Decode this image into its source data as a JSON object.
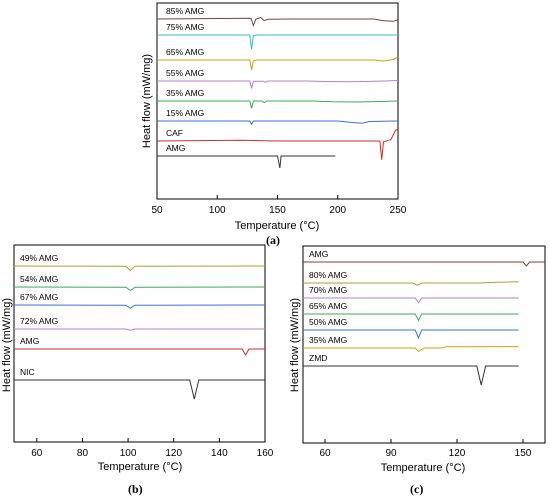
{
  "panel_labels": {
    "a": "(a)",
    "b": "(b)",
    "c": "(c)"
  },
  "chart_data": [
    {
      "id": "a",
      "type": "line",
      "xlabel": "Temperature (°C)",
      "ylabel": "Heat flow (mW/mg)",
      "xlim": [
        50,
        250
      ],
      "xticks": [
        "50",
        "100",
        "150",
        "200",
        "250"
      ],
      "grid": false,
      "series": [
        {
          "name": "85% AMG",
          "color": "#7b3f3f",
          "points": [
            [
              50,
              0
            ],
            [
              128,
              0.3
            ],
            [
              130,
              -2.5
            ],
            [
              132,
              -0.1
            ],
            [
              136,
              0.6
            ],
            [
              139,
              -0.6
            ],
            [
              142,
              -0.1
            ],
            [
              160,
              0
            ],
            [
              230,
              0
            ],
            [
              238,
              -0.7
            ],
            [
              246,
              -0.9
            ],
            [
              250,
              -0.3
            ]
          ]
        },
        {
          "name": "75% AMG",
          "color": "#2bbfbf",
          "points": [
            [
              50,
              0
            ],
            [
              127,
              0
            ],
            [
              128.5,
              -5.5
            ],
            [
              130,
              -0.2
            ],
            [
              133,
              0
            ],
            [
              250,
              0
            ]
          ]
        },
        {
          "name": "65% AMG",
          "color": "#d2a000",
          "points": [
            [
              50,
              0
            ],
            [
              127,
              0
            ],
            [
              128.5,
              -3.8
            ],
            [
              130,
              -0.3
            ],
            [
              133,
              0
            ],
            [
              230,
              0
            ],
            [
              238,
              -0.4
            ],
            [
              246,
              0.2
            ],
            [
              250,
              1.2
            ]
          ]
        },
        {
          "name": "55% AMG",
          "color": "#b37fd9",
          "points": [
            [
              50,
              0
            ],
            [
              127,
              0
            ],
            [
              128.5,
              -2.9
            ],
            [
              130,
              -0.1
            ],
            [
              138,
              -0.1
            ],
            [
              140,
              -0.5
            ],
            [
              142,
              0
            ],
            [
              175,
              0
            ],
            [
              190,
              -0.2
            ],
            [
              210,
              -0.3
            ],
            [
              230,
              -0.1
            ],
            [
              250,
              0.2
            ]
          ]
        },
        {
          "name": "35% AMG",
          "color": "#3aaa5a",
          "points": [
            [
              50,
              0
            ],
            [
              127,
              0
            ],
            [
              128.5,
              -2.8
            ],
            [
              130,
              0
            ],
            [
              137,
              0
            ],
            [
              139,
              -0.6
            ],
            [
              141,
              0
            ],
            [
              180,
              0
            ],
            [
              195,
              -0.3
            ],
            [
              215,
              -0.4
            ],
            [
              235,
              -0.2
            ],
            [
              250,
              0
            ]
          ]
        },
        {
          "name": "15% AMG",
          "color": "#3a6fd8",
          "points": [
            [
              50,
              0
            ],
            [
              127,
              0
            ],
            [
              128.5,
              -1.2
            ],
            [
              130,
              0
            ],
            [
              200,
              0
            ],
            [
              210,
              -0.5
            ],
            [
              220,
              -0.9
            ],
            [
              226,
              -0.2
            ],
            [
              250,
              0
            ]
          ]
        },
        {
          "name": "CAF",
          "color": "#d42a2a",
          "points": [
            [
              50,
              0
            ],
            [
              120,
              0.3
            ],
            [
              150,
              0
            ],
            [
              235,
              0
            ],
            [
              236.5,
              -7.2
            ],
            [
              238,
              -0.3
            ],
            [
              244,
              0.5
            ],
            [
              248,
              4.2
            ],
            [
              250,
              4.5
            ]
          ]
        },
        {
          "name": "AMG",
          "color": "#333333",
          "points": [
            [
              50,
              0
            ],
            [
              150,
              0
            ],
            [
              152,
              -4.6
            ],
            [
              153,
              0
            ],
            [
              198,
              0
            ]
          ]
        }
      ],
      "labels": [
        "85% AMG",
        "75% AMG",
        "65% AMG",
        "55% AMG",
        "35% AMG",
        "15% AMG",
        "CAF",
        "AMG"
      ]
    },
    {
      "id": "b",
      "type": "line",
      "xlabel": "Temperature (°C)",
      "ylabel": "Heat flow (mW/mg)",
      "xlim": [
        50,
        160
      ],
      "xticks": [
        "60",
        "80",
        "100",
        "120",
        "140",
        "160"
      ],
      "grid": false,
      "series": [
        {
          "name": "49% AMG",
          "color": "#a5a52a",
          "points": [
            [
              50,
              0
            ],
            [
              99,
              -0.2
            ],
            [
              101,
              -4.5
            ],
            [
              103,
              -0.2
            ],
            [
              160,
              0
            ]
          ]
        },
        {
          "name": "54% AMG",
          "color": "#3aaa5a",
          "points": [
            [
              50,
              0
            ],
            [
              99,
              -0.2
            ],
            [
              101,
              -3.5
            ],
            [
              103,
              -0.2
            ],
            [
              160,
              0
            ]
          ]
        },
        {
          "name": "67% AMG",
          "color": "#3a6fd8",
          "points": [
            [
              50,
              0
            ],
            [
              99,
              -0.2
            ],
            [
              101,
              -3.2
            ],
            [
              103,
              -0.2
            ],
            [
              160,
              0
            ]
          ]
        },
        {
          "name": "72% AMG",
          "color": "#b37fd9",
          "points": [
            [
              50,
              0
            ],
            [
              99,
              0
            ],
            [
              101,
              -1.2
            ],
            [
              103,
              0
            ],
            [
              160,
              0
            ]
          ]
        },
        {
          "name": "AMG",
          "color": "#d42a2a",
          "points": [
            [
              50,
              0
            ],
            [
              150,
              0
            ],
            [
              151.5,
              -6.0
            ],
            [
              153,
              0
            ],
            [
              160,
              0
            ]
          ]
        },
        {
          "name": "NIC",
          "color": "#333333",
          "points": [
            [
              50,
              0
            ],
            [
              127,
              0
            ],
            [
              129,
              -19
            ],
            [
              131,
              0
            ],
            [
              160,
              0
            ]
          ]
        }
      ],
      "labels": [
        "49% AMG",
        "54% AMG",
        "67% AMG",
        "72% AMG",
        "AMG",
        "NIC"
      ]
    },
    {
      "id": "c",
      "type": "line",
      "xlabel": "Temperature (°C)",
      "ylabel": "Heat flow (mW/mg)",
      "xlim": [
        50,
        160
      ],
      "xticks": [
        "60",
        "90",
        "120",
        "150"
      ],
      "grid": false,
      "series": [
        {
          "name": "AMG",
          "color": "#7b3f3f",
          "points": [
            [
              50,
              0
            ],
            [
              150,
              0
            ],
            [
              151.5,
              -4.0
            ],
            [
              153,
              0
            ],
            [
              160,
              0
            ]
          ]
        },
        {
          "name": "80% AMG",
          "color": "#a5a52a",
          "points": [
            [
              50,
              0
            ],
            [
              100,
              0
            ],
            [
              102,
              -2.2
            ],
            [
              104,
              0
            ],
            [
              130,
              0
            ],
            [
              138,
              0.8
            ],
            [
              148,
              1.2
            ]
          ]
        },
        {
          "name": "70% AMG",
          "color": "#b37fd9",
          "points": [
            [
              50,
              0
            ],
            [
              101,
              0
            ],
            [
              102.5,
              -4.8
            ],
            [
              104,
              0
            ],
            [
              148,
              0
            ]
          ]
        },
        {
          "name": "65% AMG",
          "color": "#3aaa5a",
          "points": [
            [
              50,
              0
            ],
            [
              101,
              0
            ],
            [
              102.5,
              -6.2
            ],
            [
              104,
              0
            ],
            [
              148,
              0
            ]
          ]
        },
        {
          "name": "50% AMG",
          "color": "#3a6fd8",
          "points": [
            [
              50,
              0
            ],
            [
              101,
              0
            ],
            [
              102.5,
              -7.8
            ],
            [
              104,
              0
            ],
            [
              148,
              0
            ]
          ]
        },
        {
          "name": "35% AMG",
          "color": "#d2a000",
          "points": [
            [
              50,
              0
            ],
            [
              101,
              0
            ],
            [
              102.5,
              -3.5
            ],
            [
              105,
              0
            ],
            [
              113,
              0
            ],
            [
              115,
              1.2
            ],
            [
              148,
              1.4
            ]
          ]
        },
        {
          "name": "ZMD",
          "color": "#333333",
          "points": [
            [
              50,
              0
            ],
            [
              129,
              0
            ],
            [
              131,
              -19
            ],
            [
              133,
              0
            ],
            [
              148,
              0
            ]
          ]
        }
      ],
      "labels": [
        "AMG",
        "80% AMG",
        "70% AMG",
        "65% AMG",
        "50% AMG",
        "35% AMG",
        "ZMD"
      ]
    }
  ]
}
